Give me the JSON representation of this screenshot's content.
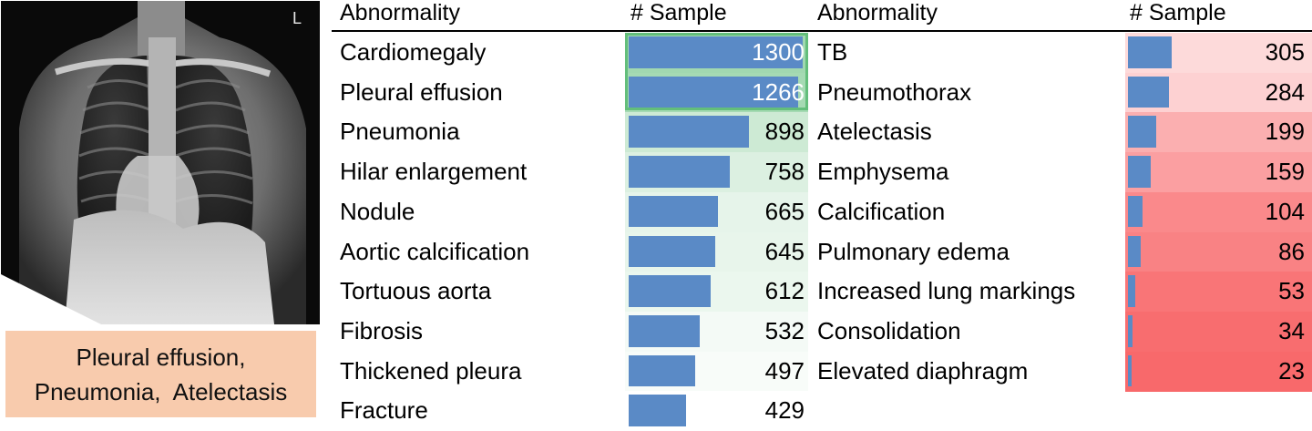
{
  "image": {
    "alt": "chest-xray",
    "corner_mark": "L",
    "caption_lines": [
      "Pleural effusion,",
      "Pneumonia,  Atelectasis"
    ]
  },
  "chart_data": [
    {
      "type": "table",
      "columns": [
        "Abnormality",
        "# Sample"
      ],
      "categories": [
        "Cardiomegaly",
        "Pleural effusion",
        "Pneumonia",
        "Hilar enlargement",
        "Nodule",
        "Aortic calcification",
        "Tortuous aorta",
        "Fibrosis",
        "Thickened pleura",
        "Fracture"
      ],
      "values": [
        1300,
        1266,
        898,
        758,
        665,
        645,
        612,
        532,
        497,
        429
      ],
      "bar_color": "#5a8ac6",
      "scale_color": "#63be7b"
    },
    {
      "type": "table",
      "columns": [
        "Abnormality",
        "# Sample"
      ],
      "categories": [
        "TB",
        "Pneumothorax",
        "Atelectasis",
        "Emphysema",
        "Calcification",
        "Pulmonary edema",
        "Increased lung markings",
        "Consolidation",
        "Elevated diaphragm"
      ],
      "values": [
        305,
        284,
        199,
        159,
        104,
        86,
        53,
        34,
        23
      ],
      "bar_color": "#5a8ac6",
      "scale_color": "#f8696b"
    }
  ]
}
